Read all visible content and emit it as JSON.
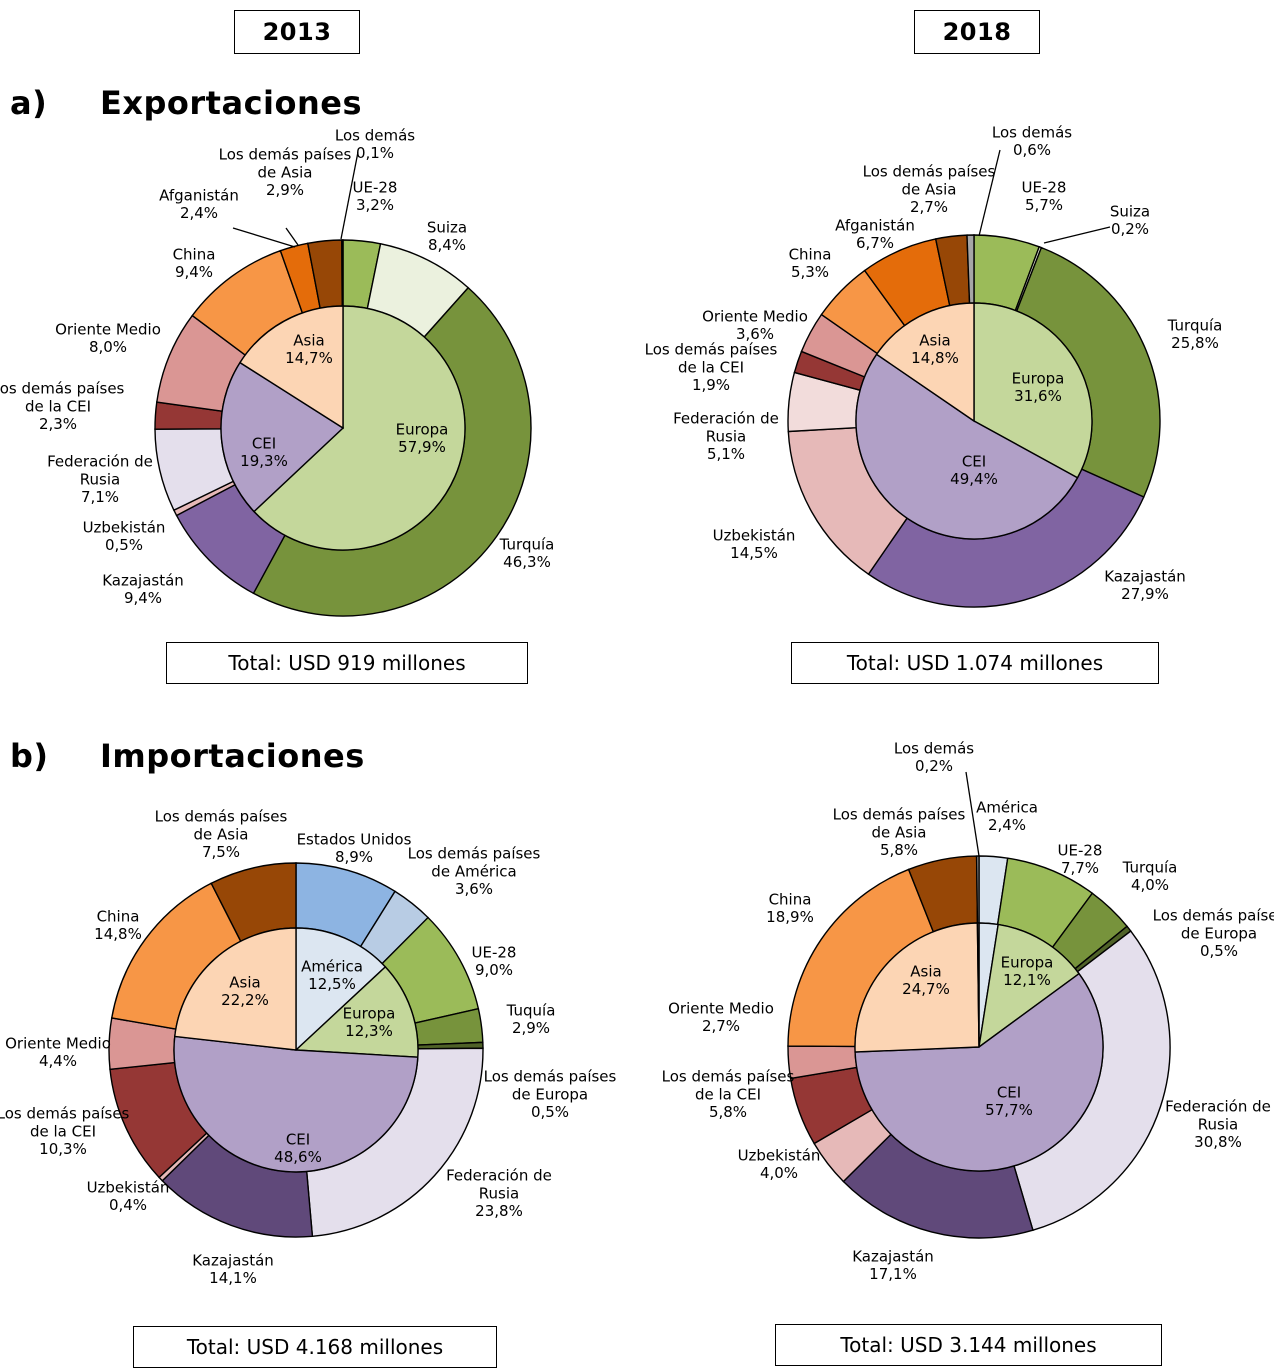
{
  "years": [
    "2013",
    "2018"
  ],
  "sections": {
    "exports": {
      "letter": "a)",
      "title": "Exportaciones"
    },
    "imports": {
      "letter": "b)",
      "title": "Importaciones"
    }
  },
  "chart_data": [
    {
      "type": "pie",
      "subtype": "nested-donut",
      "section": "Exportaciones",
      "year": "2013",
      "total": "Total: USD 919 millones",
      "inner": [
        {
          "name": "Europa",
          "value": 57.9,
          "label": "57,9%",
          "color": "#c4d79b"
        },
        {
          "name": "CEI",
          "value": 19.3,
          "label": "19,3%",
          "color": "#b1a0c7"
        },
        {
          "name": "Asia",
          "value": 14.7,
          "label": "14,7%",
          "color": "#fcd5b4"
        }
      ],
      "outer": [
        {
          "name": "UE-28",
          "value": 3.2,
          "label": "3,2%",
          "color": "#9bbb59"
        },
        {
          "name": "Suiza",
          "value": 8.4,
          "label": "8,4%",
          "color": "#ebf1de"
        },
        {
          "name": "Turquía",
          "value": 46.3,
          "label": "46,3%",
          "color": "#77933c"
        },
        {
          "name": "Kazajastán",
          "value": 9.4,
          "label": "9,4%",
          "color": "#8064a2"
        },
        {
          "name": "Uzbekistán",
          "value": 0.5,
          "label": "0,5%",
          "color": "#e6b9b8"
        },
        {
          "name": "Federación de Rusia",
          "value": 7.1,
          "label": "7,1%",
          "color": "#e4dfec"
        },
        {
          "name": "Los demás países de la CEI",
          "value": 2.3,
          "label": "2,3%",
          "color": "#953735"
        },
        {
          "name": "Oriente Medio",
          "value": 8.0,
          "label": "8,0%",
          "color": "#da9694"
        },
        {
          "name": "China",
          "value": 9.4,
          "label": "9,4%",
          "color": "#f79646"
        },
        {
          "name": "Afganistán",
          "value": 2.4,
          "label": "2,4%",
          "color": "#e46c0a"
        },
        {
          "name": "Los demás países de Asia",
          "value": 2.9,
          "label": "2,9%",
          "color": "#974706"
        },
        {
          "name": "Los demás",
          "value": 0.1,
          "label": "0,1%",
          "color": "#a6a6a6"
        }
      ]
    },
    {
      "type": "pie",
      "subtype": "nested-donut",
      "section": "Exportaciones",
      "year": "2018",
      "total": "Total: USD 1.074 millones",
      "inner": [
        {
          "name": "Europa",
          "value": 31.6,
          "label": "31,6%",
          "color": "#c4d79b"
        },
        {
          "name": "CEI",
          "value": 49.4,
          "label": "49,4%",
          "color": "#b1a0c7"
        },
        {
          "name": "Asia",
          "value": 14.8,
          "label": "14,8%",
          "color": "#fcd5b4"
        }
      ],
      "outer": [
        {
          "name": "UE-28",
          "value": 5.7,
          "label": "5,7%",
          "color": "#9bbb59"
        },
        {
          "name": "Suiza",
          "value": 0.2,
          "label": "0,2%",
          "color": "#ebf1de"
        },
        {
          "name": "Turquía",
          "value": 25.8,
          "label": "25,8%",
          "color": "#77933c"
        },
        {
          "name": "Kazajastán",
          "value": 27.9,
          "label": "27,9%",
          "color": "#8064a2"
        },
        {
          "name": "Uzbekistán",
          "value": 14.5,
          "label": "14,5%",
          "color": "#e6b9b8"
        },
        {
          "name": "Federación de Rusia",
          "value": 5.1,
          "label": "5,1%",
          "color": "#f2dcdb"
        },
        {
          "name": "Los demás países de la CEI",
          "value": 1.9,
          "label": "1,9%",
          "color": "#953735"
        },
        {
          "name": "Oriente Medio",
          "value": 3.6,
          "label": "3,6%",
          "color": "#da9694"
        },
        {
          "name": "China",
          "value": 5.3,
          "label": "5,3%",
          "color": "#f79646"
        },
        {
          "name": "Afganistán",
          "value": 6.7,
          "label": "6,7%",
          "color": "#e46c0a"
        },
        {
          "name": "Los demás países de Asia",
          "value": 2.7,
          "label": "2,7%",
          "color": "#974706"
        },
        {
          "name": "Los demás",
          "value": 0.6,
          "label": "0,6%",
          "color": "#a6a6a6"
        }
      ]
    },
    {
      "type": "pie",
      "subtype": "nested-donut",
      "section": "Importaciones",
      "year": "2013",
      "total": "Total: USD 4.168 millones",
      "inner": [
        {
          "name": "América",
          "value": 12.5,
          "label": "12,5%",
          "color": "#dce6f1"
        },
        {
          "name": "Europa",
          "value": 12.3,
          "label": "12,3%",
          "color": "#c4d79b"
        },
        {
          "name": "CEI",
          "value": 48.6,
          "label": "48,6%",
          "color": "#b1a0c7"
        },
        {
          "name": "Asia",
          "value": 22.2,
          "label": "22,2%",
          "color": "#fcd5b4"
        }
      ],
      "outer": [
        {
          "name": "Estados Unidos",
          "value": 8.9,
          "label": "8,9%",
          "color": "#8db4e2"
        },
        {
          "name": "Los demás países de América",
          "value": 3.6,
          "label": "3,6%",
          "color": "#b8cce4"
        },
        {
          "name": "UE-28",
          "value": 9.0,
          "label": "9,0%",
          "color": "#9bbb59"
        },
        {
          "name": "Tuquía",
          "value": 2.9,
          "label": "2,9%",
          "color": "#77933c"
        },
        {
          "name": "Los demás países de Europa",
          "value": 0.5,
          "label": "0,5%",
          "color": "#4f6228"
        },
        {
          "name": "Federación de Rusia",
          "value": 23.8,
          "label": "23,8%",
          "color": "#e4dfec"
        },
        {
          "name": "Kazajastán",
          "value": 14.1,
          "label": "14,1%",
          "color": "#60497a"
        },
        {
          "name": "Uzbekistán",
          "value": 0.4,
          "label": "0,4%",
          "color": "#e6b9b8"
        },
        {
          "name": "Los demás países de la CEI",
          "value": 10.3,
          "label": "10,3%",
          "color": "#953735"
        },
        {
          "name": "Oriente Medio",
          "value": 4.4,
          "label": "4,4%",
          "color": "#da9694"
        },
        {
          "name": "China",
          "value": 14.8,
          "label": "14,8%",
          "color": "#f79646"
        },
        {
          "name": "Los demás países de Asia",
          "value": 7.5,
          "label": "7,5%",
          "color": "#974706"
        }
      ]
    },
    {
      "type": "pie",
      "subtype": "nested-donut",
      "section": "Importaciones",
      "year": "2018",
      "total": "Total: USD 3.144 millones",
      "inner": [
        {
          "name": "América",
          "value": 2.4,
          "label": "",
          "color": "#dce6f1"
        },
        {
          "name": "Europa",
          "value": 12.1,
          "label": "12,1%",
          "color": "#c4d79b"
        },
        {
          "name": "CEI",
          "value": 57.7,
          "label": "57,7%",
          "color": "#b1a0c7"
        },
        {
          "name": "Asia",
          "value": 24.7,
          "label": "24,7%",
          "color": "#fcd5b4"
        },
        {
          "name": "Los demás",
          "value": 0.2,
          "label": "",
          "color": "#a6a6a6"
        }
      ],
      "outer": [
        {
          "name": "América",
          "value": 2.4,
          "label": "2,4%",
          "color": "#dce6f1"
        },
        {
          "name": "UE-28",
          "value": 7.7,
          "label": "7,7%",
          "color": "#9bbb59"
        },
        {
          "name": "Turquía",
          "value": 4.0,
          "label": "4,0%",
          "color": "#77933c"
        },
        {
          "name": "Los demás países de Europa",
          "value": 0.5,
          "label": "0,5%",
          "color": "#4f6228"
        },
        {
          "name": "Federación de Rusia",
          "value": 30.8,
          "label": "30,8%",
          "color": "#e4dfec"
        },
        {
          "name": "Kazajastán",
          "value": 17.1,
          "label": "17,1%",
          "color": "#60497a"
        },
        {
          "name": "Uzbekistán",
          "value": 4.0,
          "label": "4,0%",
          "color": "#e6b9b8"
        },
        {
          "name": "Los demás países de la CEI",
          "value": 5.8,
          "label": "5,8%",
          "color": "#953735"
        },
        {
          "name": "Oriente Medio",
          "value": 2.7,
          "label": "2,7%",
          "color": "#da9694"
        },
        {
          "name": "China",
          "value": 18.9,
          "label": "18,9%",
          "color": "#f79646"
        },
        {
          "name": "Los demás países de Asia",
          "value": 5.8,
          "label": "5,8%",
          "color": "#974706"
        },
        {
          "name": "Los demás",
          "value": 0.2,
          "label": "0,2%",
          "color": "#a6a6a6"
        }
      ]
    }
  ]
}
